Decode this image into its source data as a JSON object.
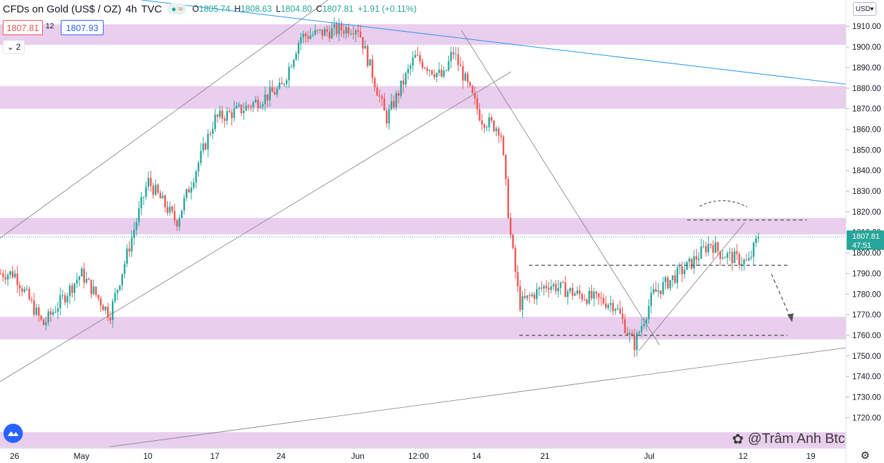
{
  "header": {
    "symbol": "CFDs on Gold (US$ / OZ)",
    "timeframe": "4h",
    "source": "TVC",
    "ohlc": {
      "o_label": "O",
      "o": "1805.74",
      "h_label": "H",
      "h": "1808.63",
      "l_label": "L",
      "l": "1804.80",
      "c_label": "C",
      "c": "1807.81",
      "change": "+1.91 (+0.11%)"
    }
  },
  "trade": {
    "sell": "1807.81",
    "spread": "12",
    "buy": "1807.93"
  },
  "indicators_count": "2",
  "currency": "USD",
  "last_price_label": {
    "price": "1807.81",
    "countdown": "47:51"
  },
  "watermark": "@Trâm Anh Btc",
  "colors": {
    "up": "#26a69a",
    "down": "#ef5350",
    "zone": "#e1bee7",
    "accent": "#2962ff",
    "trendline": "#2196f3",
    "line": "#787b86"
  },
  "chart_data": {
    "type": "candlestick",
    "title": "",
    "ylim": [
      1710,
      1920
    ],
    "y_ticks": [
      1720,
      1730,
      1740,
      1750,
      1760,
      1770,
      1780,
      1790,
      1800,
      1810,
      1820,
      1830,
      1840,
      1850,
      1860,
      1870,
      1880,
      1890,
      1900,
      1910
    ],
    "x_ticks": [
      "26",
      "May",
      "10",
      "17",
      "24",
      "Jun",
      "12:00",
      "14",
      "21",
      "Jul",
      "12",
      "19"
    ],
    "last_price": 1807.81,
    "zones": [
      [
        1901,
        1911
      ],
      [
        1870,
        1881
      ],
      [
        1809,
        1817
      ],
      [
        1758,
        1769
      ],
      [
        1705,
        1713
      ]
    ],
    "key_levels": [
      1816,
      1794,
      1760
    ],
    "path": [
      [
        "Apr 26",
        1790
      ],
      [
        "Apr 29",
        1765
      ],
      [
        "May 3",
        1790
      ],
      [
        "May 6",
        1770
      ],
      [
        "May 10",
        1835
      ],
      [
        "May 13",
        1815
      ],
      [
        "May 17",
        1865
      ],
      [
        "May 20",
        1870
      ],
      [
        "May 24",
        1880
      ],
      [
        "May 26",
        1905
      ],
      [
        "Jun 1",
        1910
      ],
      [
        "Jun 4",
        1865
      ],
      [
        "Jun 7",
        1895
      ],
      [
        "Jun 10",
        1885
      ],
      [
        "Jun 11",
        1898
      ],
      [
        "Jun 14",
        1865
      ],
      [
        "Jun 16",
        1860
      ],
      [
        "Jun 17",
        1810
      ],
      [
        "Jun 18",
        1775
      ],
      [
        "Jun 21",
        1785
      ],
      [
        "Jun 24",
        1780
      ],
      [
        "Jun 28",
        1775
      ],
      [
        "Jun 30",
        1755
      ],
      [
        "Jul 2",
        1780
      ],
      [
        "Jul 6",
        1795
      ],
      [
        "Jul 8",
        1805
      ],
      [
        "Jul 9",
        1800
      ],
      [
        "Jul 12",
        1795
      ],
      [
        "Jul 13",
        1807.81
      ]
    ]
  }
}
